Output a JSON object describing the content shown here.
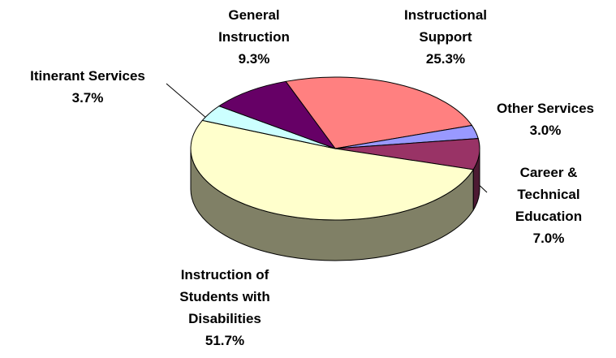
{
  "chart_data": {
    "type": "pie3d",
    "categories": [
      "Instructional Support",
      "Other Services",
      "Career & Technical Education",
      "Instruction of Students with Disabilities",
      "Itinerant Services",
      "General Instruction"
    ],
    "values": [
      25.3,
      3.0,
      7.0,
      51.7,
      3.7,
      9.3
    ],
    "value_labels": [
      "25.3%",
      "3.0%",
      "7.0%",
      "51.7%",
      "3.7%",
      "9.3%"
    ],
    "colors": [
      "#ff8080",
      "#9999ff",
      "#993366",
      "#ffffcc",
      "#ccffff",
      "#660066"
    ]
  }
}
